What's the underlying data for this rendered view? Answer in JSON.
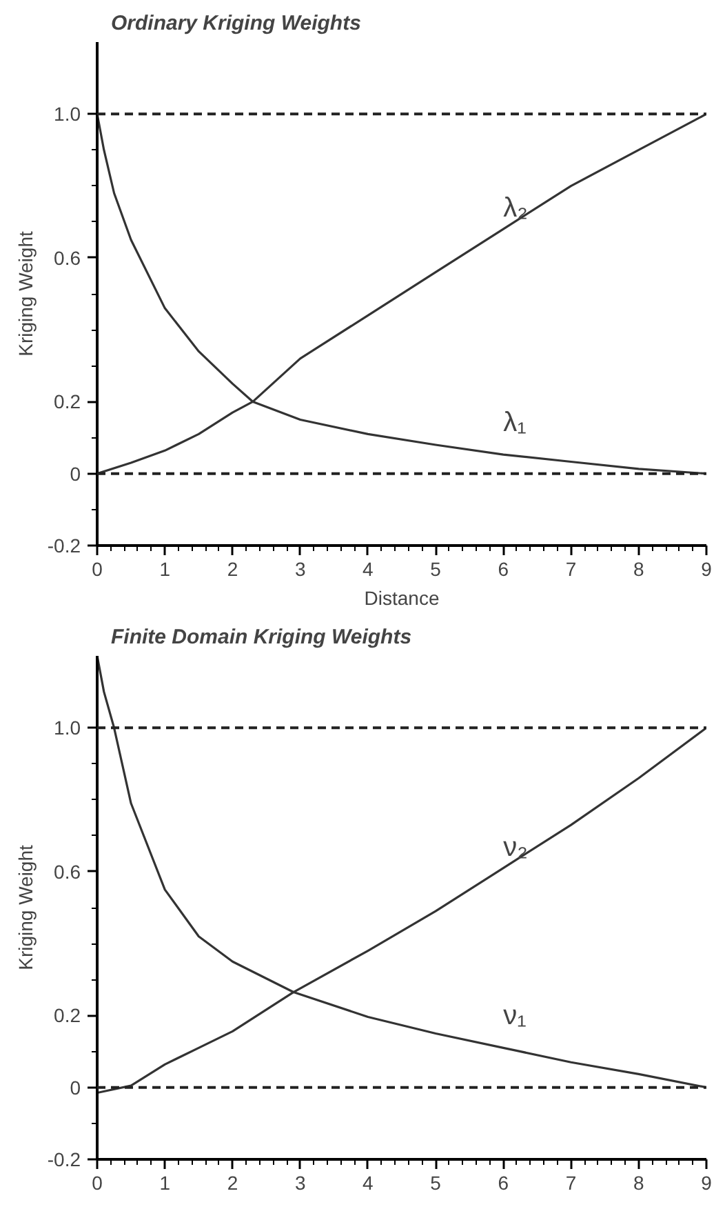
{
  "chart_data": [
    {
      "type": "line",
      "title": "Ordinary Kriging Weights",
      "xlabel": "Distance",
      "ylabel": "Kriging Weight",
      "xlim": [
        0,
        9
      ],
      "ylim": [
        -0.2,
        1.2
      ],
      "xticks": [
        0,
        1,
        2,
        3,
        4,
        5,
        6,
        7,
        8,
        9
      ],
      "yticks": [
        -0.2,
        0,
        0.2,
        0.6,
        {
          "value": 1,
          "label": "1.0"
        }
      ],
      "grid": false,
      "legend": false,
      "marker": "none",
      "line_style": "solid",
      "ref_lines": [
        {
          "axis": "y",
          "value": 0,
          "line_style": "dashed"
        },
        {
          "axis": "y",
          "value": 1.0,
          "line_style": "dashed"
        }
      ],
      "series": [
        {
          "name": "λ₁",
          "color": "#333333",
          "x": [
            0,
            0.1,
            0.25,
            0.5,
            1,
            1.5,
            2,
            2.3,
            3,
            4,
            5,
            6,
            7,
            8,
            9
          ],
          "values": [
            1.0,
            0.9,
            0.78,
            0.65,
            0.46,
            0.34,
            0.25,
            0.2,
            0.15,
            0.11,
            0.08,
            0.053,
            0.033,
            0.013,
            0
          ]
        },
        {
          "name": "λ₂",
          "color": "#333333",
          "x": [
            0,
            0.5,
            1,
            1.5,
            2,
            2.3,
            3,
            4,
            5,
            6,
            7,
            8,
            9
          ],
          "values": [
            0,
            0.03,
            0.064,
            0.11,
            0.17,
            0.2,
            0.32,
            0.44,
            0.56,
            0.68,
            0.8,
            0.9,
            1.0
          ]
        }
      ]
    },
    {
      "type": "line",
      "title": "Finite Domain Kriging Weights",
      "ylabel": "Kriging Weight",
      "xlim": [
        0,
        9
      ],
      "ylim": [
        -0.2,
        1.2
      ],
      "xticks": [
        0,
        1,
        2,
        3,
        4,
        5,
        6,
        7,
        8,
        9
      ],
      "yticks": [
        -0.2,
        0,
        0.2,
        0.6,
        {
          "value": 1,
          "label": "1.0"
        }
      ],
      "grid": false,
      "legend": false,
      "marker": "none",
      "line_style": "solid",
      "ref_lines": [
        {
          "axis": "y",
          "value": 0,
          "line_style": "dashed"
        },
        {
          "axis": "y",
          "value": 1.0,
          "line_style": "dashed"
        }
      ],
      "series": [
        {
          "name": "ν₁",
          "color": "#333333",
          "x": [
            0,
            0.1,
            0.25,
            0.5,
            1,
            1.5,
            2,
            2.9,
            4,
            5,
            6,
            7,
            8,
            9
          ],
          "values": [
            1.2,
            1.1,
            1.0,
            0.79,
            0.55,
            0.42,
            0.35,
            0.265,
            0.196,
            0.15,
            0.11,
            0.07,
            0.037,
            0
          ]
        },
        {
          "name": "ν₂",
          "color": "#333333",
          "x": [
            0,
            0.5,
            1,
            1.5,
            2,
            2.9,
            4,
            5,
            6,
            7,
            8,
            9
          ],
          "values": [
            -0.015,
            0.005,
            0.064,
            0.11,
            0.156,
            0.265,
            0.38,
            0.49,
            0.61,
            0.73,
            0.86,
            1.0
          ]
        }
      ]
    }
  ]
}
